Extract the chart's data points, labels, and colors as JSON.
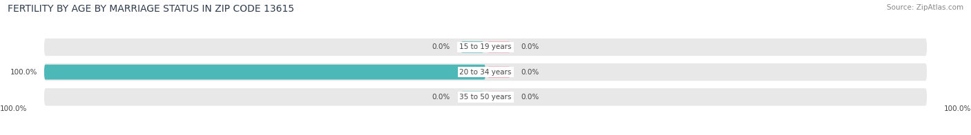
{
  "title": "FERTILITY BY AGE BY MARRIAGE STATUS IN ZIP CODE 13615",
  "source": "Source: ZipAtlas.com",
  "age_groups": [
    "15 to 19 years",
    "20 to 34 years",
    "35 to 50 years"
  ],
  "married_values": [
    0.0,
    100.0,
    0.0
  ],
  "unmarried_values": [
    0.0,
    0.0,
    0.0
  ],
  "married_color": "#4db8b8",
  "unmarried_color": "#f4a0b5",
  "bar_bg_color": "#e8e8e8",
  "figsize": [
    14.06,
    1.96
  ],
  "dpi": 100,
  "left_label": "100.0%",
  "right_label": "100.0%",
  "title_fontsize": 10,
  "tick_fontsize": 7.5,
  "label_fontsize": 7.5,
  "legend_fontsize": 8,
  "source_fontsize": 7.5,
  "bg_color": "#ffffff"
}
